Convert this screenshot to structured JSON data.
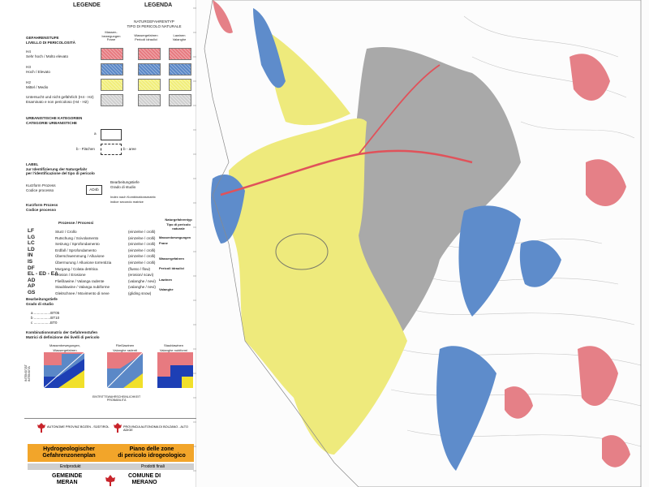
{
  "legend": {
    "title_de": "LEGENDE",
    "title_it": "LEGENDA",
    "hazard_type_header": "NATURGEFAHRENTYP\nTIPO DI PERICOLO NATURALE",
    "hazard_level_header": "GEFAHRENSTUFE\nLIVELLO DI PERICOLOSITÀ",
    "columns": [
      "Massen-\nbewegungen\nFrane",
      "Wassergefahren\nPericoli idraulici",
      "Lawinen\nValanghe"
    ],
    "levels": [
      {
        "code": "H4",
        "label": "Sehr hoch / Molto elevato",
        "swatch": "h4"
      },
      {
        "code": "H3",
        "label": "Hoch / Elevato",
        "swatch": "h3"
      },
      {
        "code": "H2",
        "label": "Mittel / Medio",
        "swatch": "h2"
      },
      {
        "code": "",
        "label": "Untersucht und nicht gefährlich (H4 - H2)\nEsaminato e non pericoloso (H4 - H2)",
        "swatch": "hx"
      }
    ],
    "urban_header": "URBANISTISCHE KATEGORIEN\nCATEGORIE URBANISTICHE",
    "urban_a": "a",
    "urban_b_de": "b - Flächen",
    "urban_b_it": "b - aree",
    "label_header": "LABEL\nzur Identifizierung der Naturgefahr\nper l'identificazione del tipo di pericolo",
    "label_example": "AD4b",
    "label_left": "Kurzform Prozess\nCodice processo",
    "label_right1": "Bearbeitungstiefe\nGrado di studio",
    "label_right2": "Index nach Kombinationsmatrix\nindice secondo matrice",
    "process_header": "Kurzform Prozess\nCodice processo",
    "process_col1": "Prozesse / Processi",
    "process_col2": "Naturgefahrentyp\nTipo di pericolo naturale",
    "processes": [
      {
        "code": "LF",
        "de": "Sturz / Crollo",
        "it": "(einzelne / crolli)"
      },
      {
        "code": "LG",
        "de": "Rutschung / Scivolamento",
        "it": "(einzelne / crolli)"
      },
      {
        "code": "LC",
        "de": "Setzung / Sprofondamento",
        "it": "(einzelne / crolli)"
      },
      {
        "code": "LD",
        "de": "Erdfall / Sprofondamento",
        "it": "(einzelne / crolli)"
      },
      {
        "code": "IN",
        "de": "Überschwemmung / Alluvione",
        "it": "(einzelne / crolli)"
      },
      {
        "code": "IS",
        "de": "Übermurung / Alluvione torrentizia",
        "it": "(einzelne / crolli)"
      },
      {
        "code": "DF",
        "de": "Murgang / Colata detritica",
        "it": "(flusso / flow)"
      },
      {
        "code": "EL - ED - EA",
        "de": "Erosion / Erosione",
        "it": "(erosion/ scavi)"
      },
      {
        "code": "AD",
        "de": "Fließlawine / Valanga radente",
        "it": "(valanghe / nevi)"
      },
      {
        "code": "AP",
        "de": "Staublawine / Valanga nubiforme",
        "it": "(valanghe / nevi)"
      },
      {
        "code": "GS",
        "de": "Gleitschnee / Movimento di neve",
        "it": "(gliding snow)"
      }
    ],
    "process_categories": [
      "Massenbewegungen",
      "Frane",
      "Wassergefahren",
      "Pericoli idraulici",
      "Lawinen",
      "Valanghe"
    ],
    "depth_header": "Bearbeitungstiefe\nGrado di studio",
    "depth_levels": [
      "a ................BT05",
      "b ................BT10",
      "c ................BT0"
    ],
    "matrix_header": "Kombinationsmatrix der Gefahrenstufen\nMatrici di definizione dei livelli di pericolo",
    "matrices": [
      "Massenbewegungen, Wassergefahren\nFrane, pericoli idraulici",
      "Fließlawinen\nValanghe radenti",
      "Staublawinen\nValanghe nubiformi"
    ],
    "matrix_bottom": "EINTRITTSWAHRSCHEINLICHKEIT\nPROBABILITÀ",
    "matrix_side": "INTENSITÄT\nINTENSITÀ"
  },
  "footer": {
    "province_de": "AUTONOME PROVINZ BOZEN - SÜDTIROL",
    "province_it": "PROVINCIA AUTONOMA DI BOLZANO - ALTO ADIGE",
    "plan_de": "Hydrogeologischer\nGefahrenzonenplan",
    "plan_it": "Piano delle zone\ndi pericolo idrogeologico",
    "product_de": "Endprodukt",
    "product_it": "Prodotti finali",
    "municipality_de": "GEMEINDE\nMERAN",
    "municipality_it": "COMUNE DI\nMERANO"
  },
  "colors": {
    "h4": "#e77a80",
    "h3": "#5b88c7",
    "h2": "#f1ee7a",
    "examined": "#cfcfcf",
    "road": "#e0525a",
    "footer_band": "#f2a52a"
  }
}
